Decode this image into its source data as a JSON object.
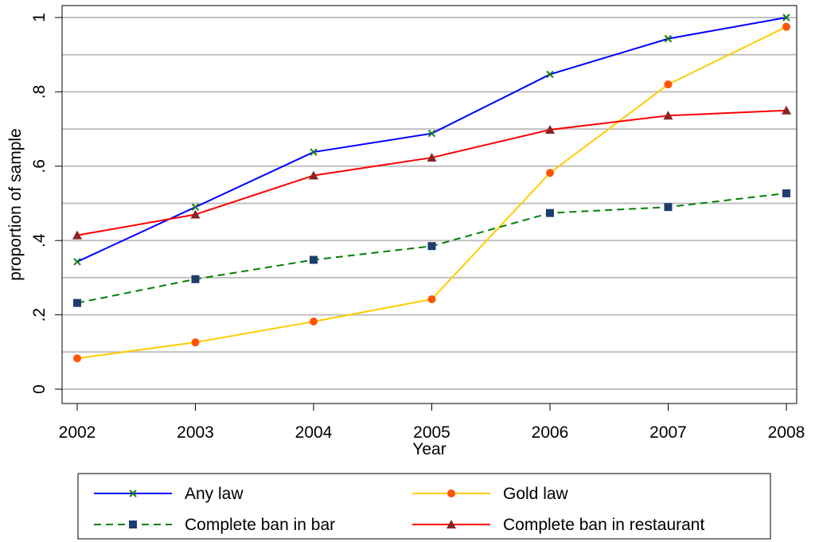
{
  "chart_data": {
    "type": "line",
    "xlabel": "Year",
    "ylabel": "proportion of sample",
    "x": [
      2002,
      2003,
      2004,
      2005,
      2006,
      2007,
      2008
    ],
    "x_tick_labels": [
      "2002",
      "2003",
      "2004",
      "2005",
      "2006",
      "2007",
      "2008"
    ],
    "ylim": [
      0,
      1
    ],
    "y_ticks": [
      0,
      0.2,
      0.4,
      0.6,
      0.8,
      1
    ],
    "y_tick_labels": [
      "0",
      ".2",
      ".4",
      ".6",
      ".8",
      "1"
    ],
    "grid": true,
    "legend_position": "bottom",
    "series": [
      {
        "name": "Any law",
        "color": "#0000ff",
        "marker": "x",
        "marker_color": "#1a7a1a",
        "dash": "solid",
        "values": [
          0.343,
          0.49,
          0.638,
          0.688,
          0.847,
          0.943,
          1.0
        ]
      },
      {
        "name": "Gold law",
        "color": "#ffcc00",
        "marker": "circle",
        "marker_color": "#ff5500",
        "dash": "solid",
        "values": [
          0.083,
          0.126,
          0.182,
          0.242,
          0.582,
          0.82,
          0.975
        ]
      },
      {
        "name": "Complete ban in bar",
        "color": "#008000",
        "marker": "square",
        "marker_color": "#1c3f6e",
        "dash": "dashed",
        "values": [
          0.232,
          0.296,
          0.348,
          0.385,
          0.474,
          0.49,
          0.527
        ]
      },
      {
        "name": "Complete ban in restaurant",
        "color": "#ff0000",
        "marker": "triangle",
        "marker_color": "#8b2323",
        "dash": "solid",
        "values": [
          0.414,
          0.47,
          0.575,
          0.623,
          0.698,
          0.736,
          0.75
        ]
      }
    ]
  }
}
